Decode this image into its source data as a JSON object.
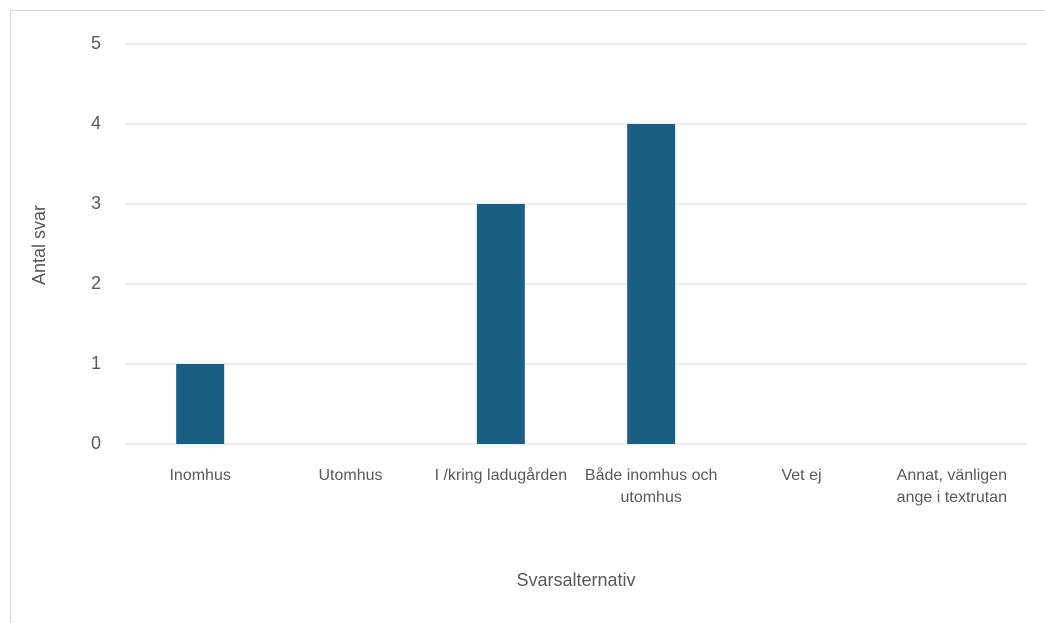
{
  "chart_data": {
    "type": "bar",
    "categories": [
      "Inomhus",
      "Utomhus",
      "I /kring ladugården",
      "Både inomhus och utomhus",
      "Vet ej",
      "Annat, vänligen ange i textrutan"
    ],
    "values": [
      1,
      0,
      3,
      4,
      0,
      0
    ],
    "color": "#195e83",
    "xlabel": "Svarsalternativ",
    "ylabel": "Antal svar",
    "ylim": [
      0,
      5
    ],
    "yticks": [
      0,
      1,
      2,
      3,
      4,
      5
    ],
    "grid": true
  }
}
